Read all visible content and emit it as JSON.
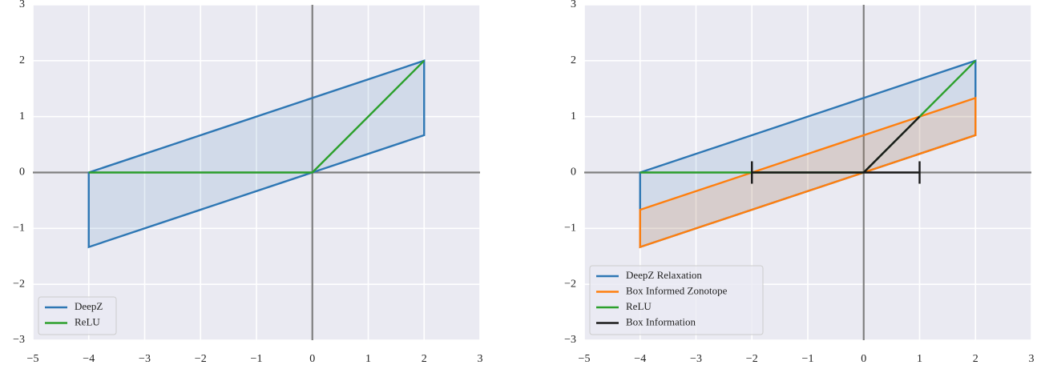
{
  "chart_data": [
    {
      "type": "line",
      "xlim": [
        -5,
        3
      ],
      "ylim": [
        -3,
        3
      ],
      "xticks": [
        {
          "value": -5,
          "label": "−5"
        },
        {
          "value": -4,
          "label": "−4"
        },
        {
          "value": -3,
          "label": "−3"
        },
        {
          "value": -2,
          "label": "−2"
        },
        {
          "value": -1,
          "label": "−1"
        },
        0,
        1,
        2,
        3
      ],
      "yticks": [
        {
          "value": -3,
          "label": "−3"
        },
        {
          "value": -2,
          "label": "−2"
        },
        {
          "value": -1,
          "label": "−1"
        },
        0,
        1,
        2,
        3
      ],
      "grid": true,
      "zero_lines": true,
      "legend": "lower left",
      "series": [
        {
          "name": "DeepZ",
          "color": "#2e77b4",
          "fill": true,
          "x": [
            -4,
            2,
            2,
            -4
          ],
          "values": [
            0,
            2,
            0.667,
            -1.333
          ]
        },
        {
          "name": "ReLU",
          "color": "#2ca02c",
          "fill": false,
          "x": [
            -4,
            0,
            2
          ],
          "values": [
            0,
            0,
            2
          ]
        }
      ]
    },
    {
      "type": "line",
      "xlim": [
        -5,
        3
      ],
      "ylim": [
        -3,
        3
      ],
      "xticks": [
        {
          "value": -5,
          "label": "−5"
        },
        {
          "value": -4,
          "label": "−4"
        },
        {
          "value": -3,
          "label": "−3"
        },
        {
          "value": -2,
          "label": "−2"
        },
        {
          "value": -1,
          "label": "−1"
        },
        0,
        1,
        2,
        3
      ],
      "yticks": [
        {
          "value": -3,
          "label": "−3"
        },
        {
          "value": -2,
          "label": "−2"
        },
        {
          "value": -1,
          "label": "−1"
        },
        0,
        1,
        2,
        3
      ],
      "grid": true,
      "zero_lines": true,
      "legend": "lower left",
      "series": [
        {
          "name": "DeepZ Relaxation",
          "color": "#2e77b4",
          "fill": true,
          "x": [
            -4,
            2,
            2,
            -4
          ],
          "values": [
            0,
            2,
            0.667,
            -1.333
          ]
        },
        {
          "name": "Box Informed Zonotope",
          "color": "#ff7f0e",
          "fill": true,
          "x": [
            -4,
            2,
            2,
            -4
          ],
          "values": [
            -0.667,
            1.333,
            0.667,
            -1.333
          ]
        },
        {
          "name": "ReLU",
          "color": "#2ca02c",
          "fill": false,
          "x": [
            -4,
            0,
            2
          ],
          "values": [
            0,
            0,
            2
          ]
        },
        {
          "name": "Box Information",
          "color": "#1a1a1a",
          "fill": false,
          "x": [
            -2,
            1,
            null,
            0,
            1,
            null,
            -2,
            -2,
            null,
            1,
            1
          ],
          "values": [
            0,
            0,
            null,
            0,
            1,
            null,
            -0.2,
            0.2,
            null,
            -0.2,
            0.2
          ]
        }
      ]
    }
  ]
}
